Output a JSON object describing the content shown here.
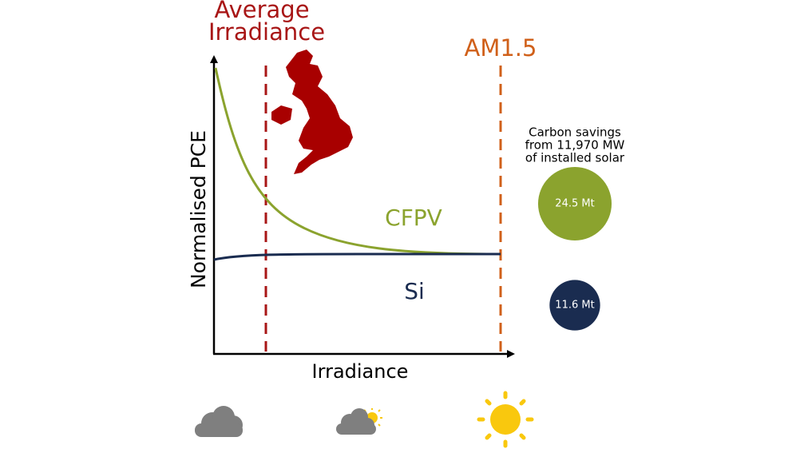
{
  "heading": {
    "lines": [
      "Average",
      "Irradiance"
    ]
  },
  "reference_label": "AM1.5",
  "axes": {
    "y_label": "Normalised PCE",
    "x_label": "Irradiance"
  },
  "curves": {
    "cfpv": "CFPV",
    "si": "Si"
  },
  "carbon": {
    "caption_lines": [
      "Carbon savings",
      "from 11,970 MW",
      "of installed solar"
    ],
    "bubbles": [
      {
        "value": 24.5,
        "label": "24.5 Mt",
        "color": "#8ba32e"
      },
      {
        "value": 11.6,
        "label": "11.6 Mt",
        "color": "#1a2c50"
      }
    ]
  }
}
